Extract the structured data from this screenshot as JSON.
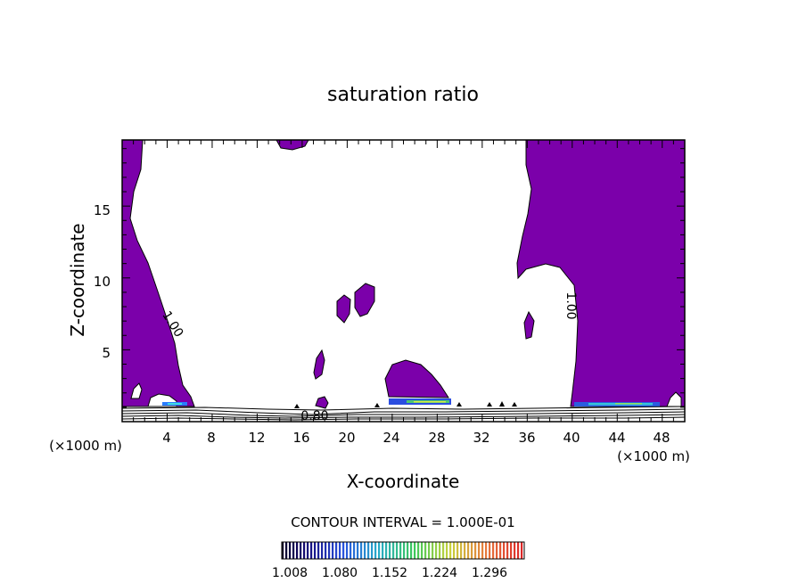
{
  "chart_data": {
    "type": "contour",
    "title": "saturation ratio",
    "xlabel": "X-coordinate",
    "ylabel": "Z-coordinate",
    "x_unit_left": "(×1000 m)",
    "x_unit_right": "(×1000 m)",
    "xlim": [
      0,
      50
    ],
    "ylim": [
      0,
      19.6
    ],
    "x_ticks": [
      "4",
      "8",
      "12",
      "16",
      "20",
      "24",
      "28",
      "32",
      "36",
      "40",
      "44",
      "48"
    ],
    "y_ticks": [
      "5",
      "10",
      "15"
    ],
    "contour_labels": [
      "1.00",
      "0.80",
      "1.00"
    ],
    "contour_interval": "CONTOUR INTERVAL = 1.000E-01",
    "colorbar": {
      "labels": [
        "1.008",
        "1.080",
        "1.152",
        "1.224",
        "1.296"
      ],
      "min": 1.008,
      "max": 1.332
    },
    "fill_color": "#7b00aa",
    "grid": false
  }
}
